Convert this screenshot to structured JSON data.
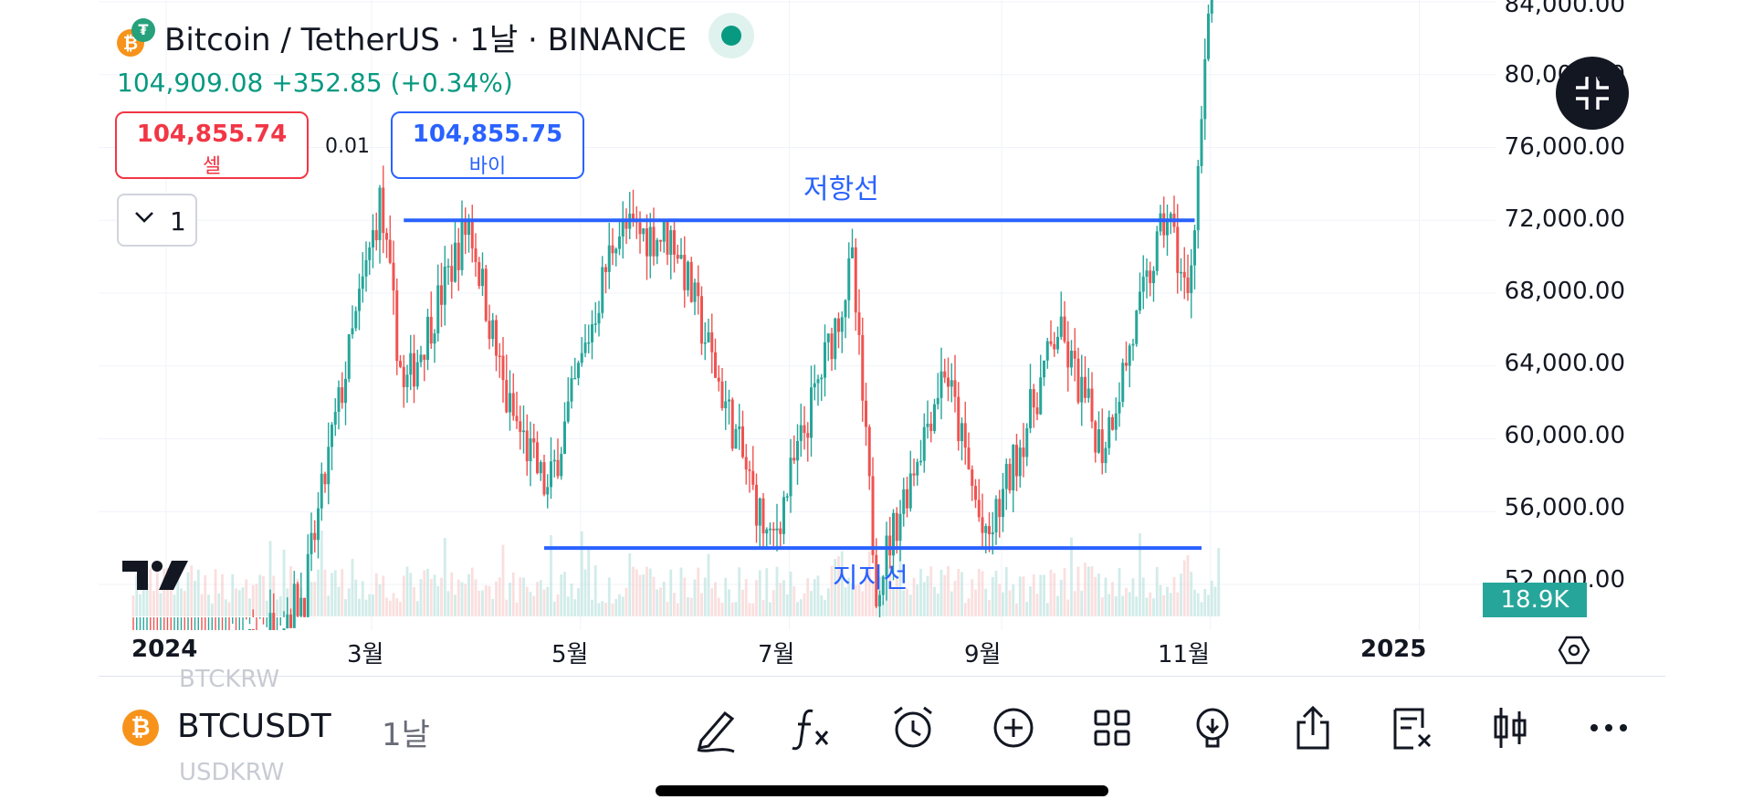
{
  "header": {
    "title": "Bitcoin / TetherUS · 1날 · BINANCE",
    "price_line": "104,909.08  +352.85 (+0.34%)",
    "sell_price": "104,855.74",
    "sell_label": "셀",
    "spread": "0.01",
    "buy_price": "104,855.75",
    "buy_label": "바이",
    "quantity": "1"
  },
  "annotations": {
    "resistance_label": "저항선",
    "support_label": "지지선"
  },
  "price_axis": [
    "84,000.00",
    "80,000.00",
    "76,000.00",
    "72,000.00",
    "68,000.00",
    "64,000.00",
    "60,000.00",
    "56,000.00",
    "52,000.00"
  ],
  "volume_tag": "18.9K",
  "time_axis": [
    {
      "label": "2024",
      "bold": true
    },
    {
      "label": "3월",
      "bold": false
    },
    {
      "label": "5월",
      "bold": false
    },
    {
      "label": "7월",
      "bold": false
    },
    {
      "label": "9월",
      "bold": false
    },
    {
      "label": "11월",
      "bold": false
    },
    {
      "label": "2025",
      "bold": true
    }
  ],
  "bottom_bar": {
    "symbol": "BTCUSDT",
    "interval": "1날",
    "ghost_top": "BTCKRW",
    "ghost_bottom": "USDKRW",
    "tools": [
      "draw-icon",
      "indicators-icon",
      "alarm-icon",
      "add-icon",
      "layout-icon",
      "ideas-icon",
      "share-icon",
      "watchlist-icon",
      "chart-type-icon",
      "more-icon"
    ]
  },
  "colors": {
    "up": "#26a69a",
    "down": "#ef5350",
    "line": "#2962ff",
    "price_green": "#089981",
    "sell_red": "#f23645"
  },
  "chart_data": {
    "type": "candlestick",
    "symbol": "Bitcoin / TetherUS",
    "interval": "1날",
    "ylim": [
      50000,
      84000
    ],
    "keypoints": [
      {
        "x": "2024-02-20",
        "close": 51500
      },
      {
        "x": "2024-02-28",
        "close": 60000
      },
      {
        "x": "2024-03-13",
        "close": 73000
      },
      {
        "x": "2024-03-20",
        "close": 62500
      },
      {
        "x": "2024-04-08",
        "close": 72000
      },
      {
        "x": "2024-04-19",
        "close": 62000
      },
      {
        "x": "2024-05-01",
        "close": 57000
      },
      {
        "x": "2024-05-21",
        "close": 71500
      },
      {
        "x": "2024-06-07",
        "close": 71000
      },
      {
        "x": "2024-07-05",
        "close": 54000
      },
      {
        "x": "2024-07-29",
        "close": 69500
      },
      {
        "x": "2024-08-05",
        "close": 52000
      },
      {
        "x": "2024-08-25",
        "close": 64000
      },
      {
        "x": "2024-09-06",
        "close": 54000
      },
      {
        "x": "2024-09-27",
        "close": 66000
      },
      {
        "x": "2024-10-10",
        "close": 59500
      },
      {
        "x": "2024-10-29",
        "close": 72500
      },
      {
        "x": "2024-11-04",
        "close": 67500
      },
      {
        "x": "2024-11-13",
        "close": 90000
      }
    ],
    "resistance": {
      "label": "저항선",
      "value": 72000,
      "from": "2024-03-20",
      "to": "2024-11-06"
    },
    "support": {
      "label": "지지선",
      "value": 54000,
      "from": "2024-04-30",
      "to": "2024-11-08"
    },
    "volume_last": "18.9K"
  }
}
